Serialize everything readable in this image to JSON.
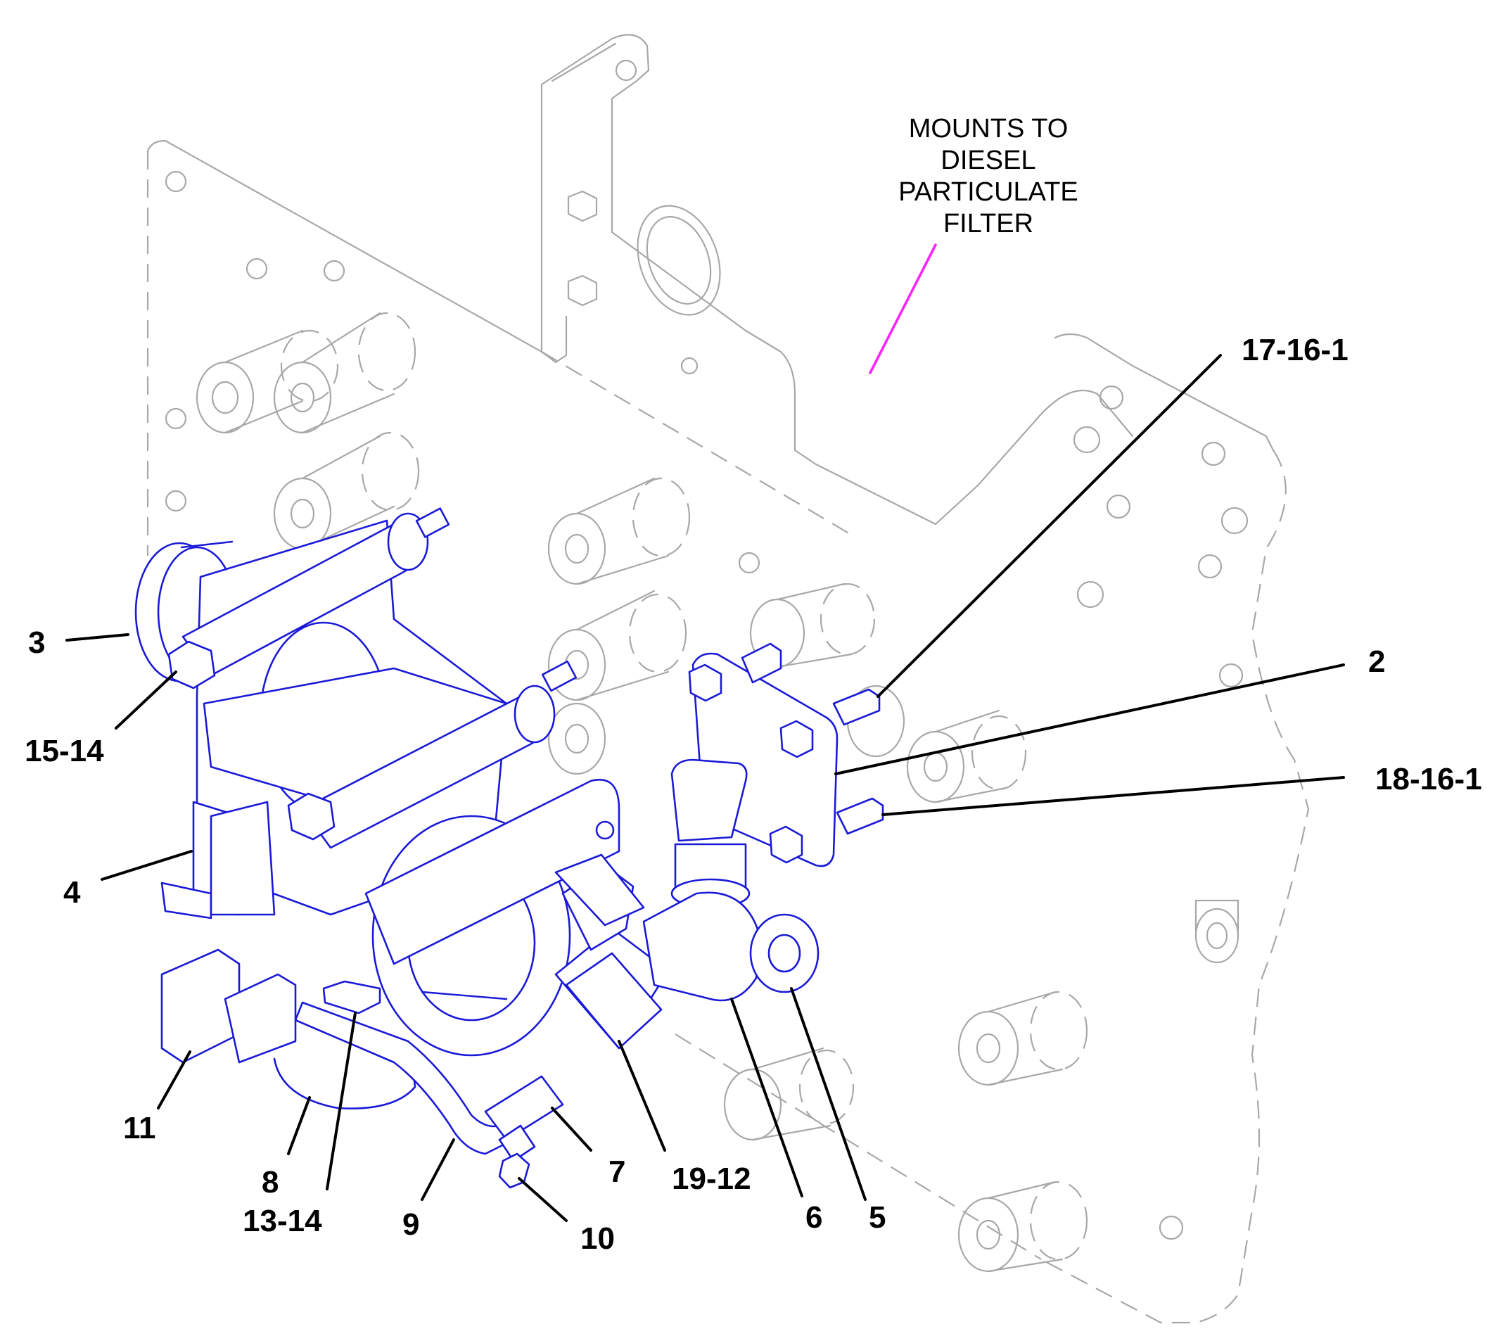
{
  "note": {
    "lines": [
      "MOUNTS TO",
      "DIESEL",
      "PARTICULATE",
      "FILTER"
    ],
    "leader_color": "#ff22ff"
  },
  "callouts": {
    "c_17_16_1": "17-16-1",
    "c_2": "2",
    "c_18_16_1": "18-16-1",
    "c_3": "3",
    "c_15_14": "15-14",
    "c_4": "4",
    "c_11": "11",
    "c_8": "8",
    "c_13_14": "13-14",
    "c_9": "9",
    "c_10": "10",
    "c_7": "7",
    "c_19_12": "19-12",
    "c_6": "6",
    "c_5": "5"
  },
  "colors": {
    "highlight_parts": "#1a1ad8",
    "reference_parts": "#a8a8a8",
    "leader_lines": "#000000"
  }
}
